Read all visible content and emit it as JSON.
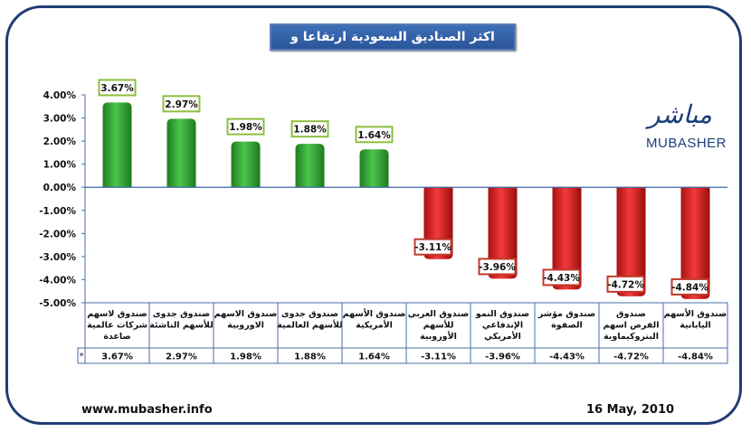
{
  "title": "اكثر الصناديق السعودية ارتفاعا و تراجعا",
  "logo": {
    "arabic": "مباشر",
    "english": "MUBASHER"
  },
  "footer": {
    "url": "www.mubasher.info",
    "date": "16 May, 2010"
  },
  "colors": {
    "positive": "#2ea12e",
    "negative": "#e01b1b",
    "frame": "#1f3d73",
    "label_pos_border": "#8cbf3f",
    "label_neg_border": "#c0392b"
  },
  "chart_data": {
    "type": "bar",
    "title": "اكثر الصناديق السعودية ارتفاعا و تراجعا",
    "categories": [
      "صندوق لاسهم شركات عالمية صاعدة",
      "صندوق جدوى للأسهم الناشئة",
      "صندوق الاسهم الاوروبية",
      "صندوق جدوى للأسهم العالمية",
      "صندوق الأسهم الأمريكية",
      "صندوق العربي للأسهم الأوروبية",
      "صندوق النمو الإندفاعي الأمريكي",
      "صندوق مؤشر الصفوة",
      "صندوق الفرص اسهم البتروكيماوية",
      "صندوق الأسهم اليابانية"
    ],
    "category_lines": [
      [
        "صندوق لاسهم",
        "شركات عالمية",
        "صاعدة"
      ],
      [
        "صندوق جدوى",
        "للأسهم الناشئة"
      ],
      [
        "صندوق الاسهم",
        "الاوروبية"
      ],
      [
        "صندوق جدوى",
        "للأسهم العالمية"
      ],
      [
        "صندوق الأسهم",
        "الأمريكية"
      ],
      [
        "صندوق العربي",
        "للأسهم",
        "الأوروبية"
      ],
      [
        "صندوق النمو",
        "الإندفاعي",
        "الأمريكي"
      ],
      [
        "صندوق مؤشر",
        "الصفوة"
      ],
      [
        "صندوق",
        "الفرص اسهم",
        "البتروكيماوية"
      ],
      [
        "صندوق الأسهم",
        "اليابانية"
      ]
    ],
    "values": [
      3.67,
      2.97,
      1.98,
      1.88,
      1.64,
      -3.11,
      -3.96,
      -4.43,
      -4.72,
      -4.84
    ],
    "value_labels": [
      "3.67%",
      "2.97%",
      "1.98%",
      "1.88%",
      "1.64%",
      "-3.11%",
      "-3.96%",
      "-4.43%",
      "-4.72%",
      "-4.84%"
    ],
    "series_marker": "*",
    "ylim": [
      -5,
      4
    ],
    "y_ticks": [
      "4.00%",
      "3.00%",
      "2.00%",
      "1.00%",
      "0.00%",
      "-1.00%",
      "-2.00%",
      "-3.00%",
      "-4.00%",
      "-5.00%"
    ],
    "y_tick_values": [
      4,
      3,
      2,
      1,
      0,
      -1,
      -2,
      -3,
      -4,
      -5
    ],
    "grid": false,
    "legend": "none"
  }
}
